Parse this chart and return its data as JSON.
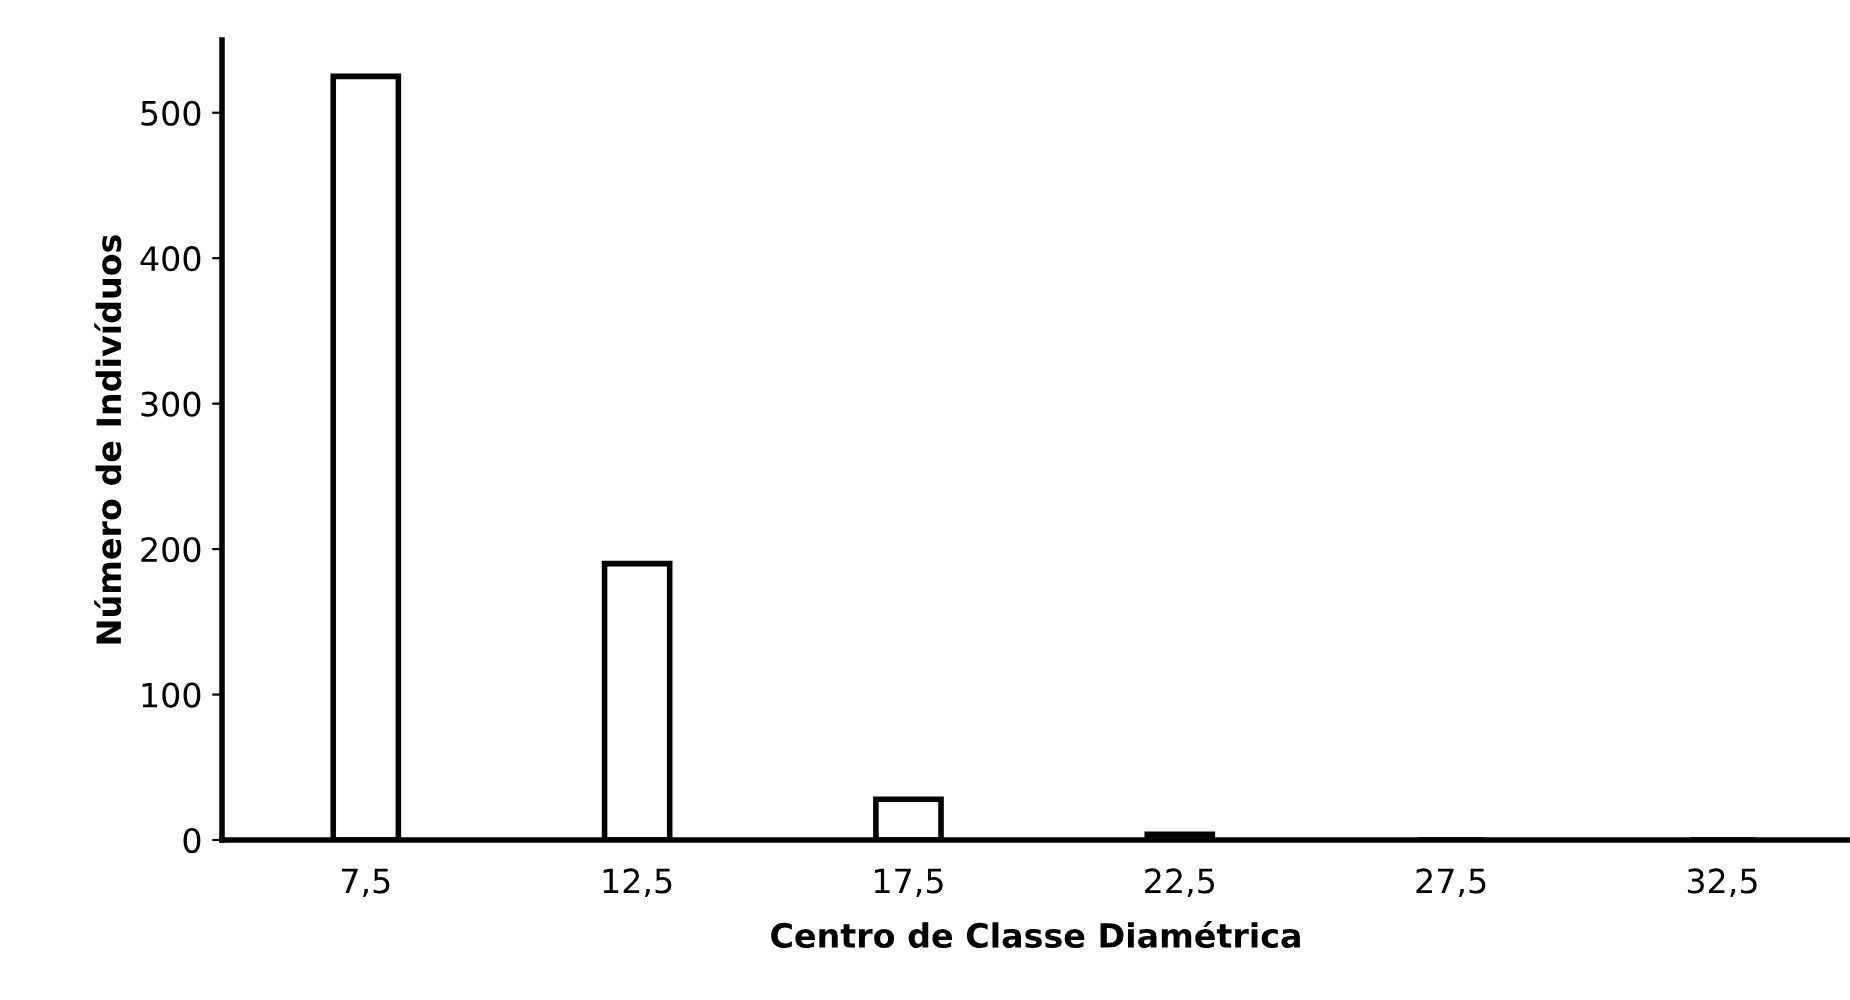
{
  "chart_data": {
    "type": "bar",
    "categories": [
      "7,5",
      "12,5",
      "17,5",
      "22,5",
      "27,5",
      "32,5"
    ],
    "values": [
      525,
      190,
      28,
      4,
      0,
      0
    ],
    "color": "#ffffff",
    "xlabel": "Centro de Classe Diamétrica",
    "ylabel": "Número de Indivíduos",
    "ylim": [
      0,
      550
    ],
    "yticks": [
      0,
      100,
      200,
      300,
      400,
      500
    ],
    "grid": false,
    "legend": false
  }
}
